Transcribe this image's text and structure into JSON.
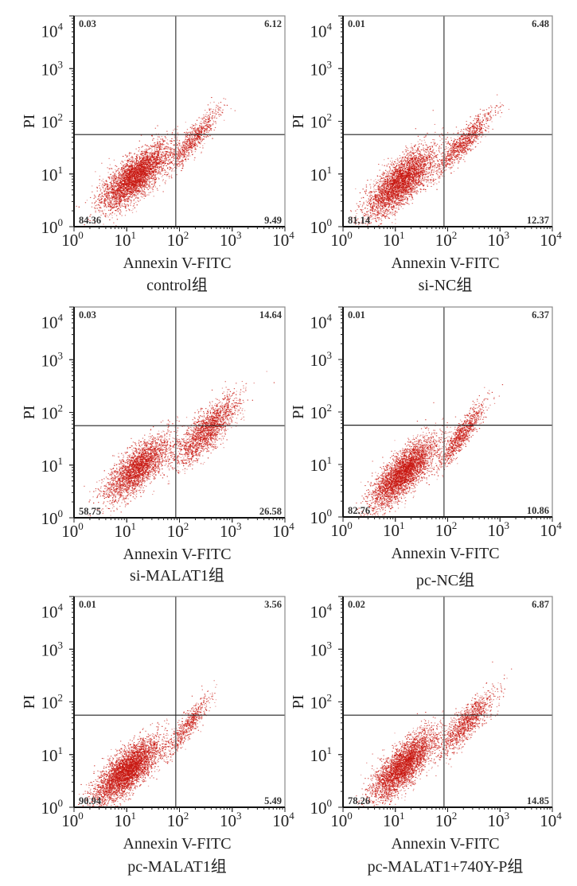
{
  "figure": {
    "dot_color": "#c8160f",
    "frame_color": "#333333",
    "gate_color": "#444444"
  },
  "chart_data": [
    {
      "type": "scatter",
      "title": "control组",
      "xlabel": "Annexin V-FITC",
      "ylabel": "PI",
      "xscale": "log",
      "yscale": "log",
      "xlim": [
        1,
        10000
      ],
      "ylim": [
        1,
        10000
      ],
      "xticks": [
        "10",
        "10",
        "10",
        "10",
        "10"
      ],
      "xtick_exponents": [
        "0",
        "1",
        "2",
        "3",
        "4"
      ],
      "yticks": [
        "10",
        "10",
        "10",
        "10",
        "10"
      ],
      "ytick_exponents": [
        "0",
        "1",
        "2",
        "3",
        "4"
      ],
      "gate": {
        "x": 85,
        "y": 56
      },
      "quadrants": {
        "upper_left": "0.03",
        "upper_right": "6.12",
        "lower_left": "84.36",
        "lower_right": "9.49"
      },
      "clusters": [
        {
          "name": "viable",
          "center_log": [
            1.15,
            0.95
          ],
          "spread_log": [
            0.32,
            0.3
          ],
          "corr": 0.75,
          "weight": 0.86
        },
        {
          "name": "apoptotic",
          "center_log": [
            2.25,
            1.65
          ],
          "spread_log": [
            0.25,
            0.3
          ],
          "corr": 0.9,
          "weight": 0.14
        }
      ]
    },
    {
      "type": "scatter",
      "title": "si-NC组",
      "xlabel": "Annexin V-FITC",
      "ylabel": "PI",
      "xscale": "log",
      "yscale": "log",
      "xlim": [
        1,
        10000
      ],
      "ylim": [
        1,
        10000
      ],
      "xticks": [
        "10",
        "10",
        "10",
        "10",
        "10"
      ],
      "xtick_exponents": [
        "0",
        "1",
        "2",
        "3",
        "4"
      ],
      "yticks": [
        "10",
        "10",
        "10",
        "10",
        "10"
      ],
      "ytick_exponents": [
        "0",
        "1",
        "2",
        "3",
        "4"
      ],
      "gate": {
        "x": 85,
        "y": 56
      },
      "quadrants": {
        "upper_left": "0.01",
        "upper_right": "6.48",
        "lower_left": "81.14",
        "lower_right": "12.37"
      },
      "clusters": [
        {
          "name": "viable",
          "center_log": [
            1.1,
            0.85
          ],
          "spread_log": [
            0.32,
            0.32
          ],
          "corr": 0.75,
          "weight": 0.82
        },
        {
          "name": "apoptotic",
          "center_log": [
            2.3,
            1.6
          ],
          "spread_log": [
            0.27,
            0.3
          ],
          "corr": 0.9,
          "weight": 0.18
        }
      ]
    },
    {
      "type": "scatter",
      "title": "si-MALAT1组",
      "xlabel": "Annexin V-FITC",
      "ylabel": "PI",
      "xscale": "log",
      "yscale": "log",
      "xlim": [
        1,
        10000
      ],
      "ylim": [
        1,
        10000
      ],
      "xticks": [
        "10",
        "10",
        "10",
        "10",
        "10"
      ],
      "xtick_exponents": [
        "0",
        "1",
        "2",
        "3",
        "4"
      ],
      "yticks": [
        "10",
        "10",
        "10",
        "10",
        "10"
      ],
      "ytick_exponents": [
        "0",
        "1",
        "2",
        "3",
        "4"
      ],
      "gate": {
        "x": 85,
        "y": 56
      },
      "quadrants": {
        "upper_left": "0.03",
        "upper_right": "14.64",
        "lower_left": "58.75",
        "lower_right": "26.58"
      },
      "clusters": [
        {
          "name": "viable",
          "center_log": [
            1.2,
            0.95
          ],
          "spread_log": [
            0.3,
            0.3
          ],
          "corr": 0.75,
          "weight": 0.6
        },
        {
          "name": "apoptotic",
          "center_log": [
            2.5,
            1.65
          ],
          "spread_log": [
            0.3,
            0.32
          ],
          "corr": 0.8,
          "weight": 0.4
        }
      ]
    },
    {
      "type": "scatter",
      "title": "pc-NC组",
      "xlabel": "Annexin V-FITC",
      "ylabel": "PI",
      "xscale": "log",
      "yscale": "log",
      "xlim": [
        1,
        10000
      ],
      "ylim": [
        1,
        10000
      ],
      "xticks": [
        "10",
        "10",
        "10",
        "10",
        "10"
      ],
      "xtick_exponents": [
        "0",
        "1",
        "2",
        "3",
        "4"
      ],
      "yticks": [
        "10",
        "10",
        "10",
        "10",
        "10"
      ],
      "ytick_exponents": [
        "0",
        "1",
        "2",
        "3",
        "4"
      ],
      "gate": {
        "x": 85,
        "y": 56
      },
      "quadrants": {
        "upper_left": "0.01",
        "upper_right": "6.37",
        "lower_left": "82.76",
        "lower_right": "10.86"
      },
      "clusters": [
        {
          "name": "viable",
          "center_log": [
            1.15,
            0.85
          ],
          "spread_log": [
            0.3,
            0.32
          ],
          "corr": 0.78,
          "weight": 0.83
        },
        {
          "name": "apoptotic",
          "center_log": [
            2.25,
            1.55
          ],
          "spread_log": [
            0.22,
            0.3
          ],
          "corr": 0.9,
          "weight": 0.17
        }
      ]
    },
    {
      "type": "scatter",
      "title": "pc-MALAT1组",
      "xlabel": "Annexin V-FITC",
      "ylabel": "PI",
      "xscale": "log",
      "yscale": "log",
      "xlim": [
        1,
        10000
      ],
      "ylim": [
        1,
        10000
      ],
      "xticks": [
        "10",
        "10",
        "10",
        "10",
        "10"
      ],
      "xtick_exponents": [
        "0",
        "1",
        "2",
        "3",
        "4"
      ],
      "yticks": [
        "10",
        "10",
        "10",
        "10",
        "10"
      ],
      "ytick_exponents": [
        "0",
        "1",
        "2",
        "3",
        "4"
      ],
      "gate": {
        "x": 85,
        "y": 56
      },
      "quadrants": {
        "upper_left": "0.01",
        "upper_right": "3.56",
        "lower_left": "90.94",
        "lower_right": "5.49"
      },
      "clusters": [
        {
          "name": "viable",
          "center_log": [
            1.0,
            0.7
          ],
          "spread_log": [
            0.3,
            0.3
          ],
          "corr": 0.75,
          "weight": 0.91
        },
        {
          "name": "apoptotic",
          "center_log": [
            2.15,
            1.55
          ],
          "spread_log": [
            0.22,
            0.3
          ],
          "corr": 0.9,
          "weight": 0.09
        }
      ]
    },
    {
      "type": "scatter",
      "title": "pc-MALAT1+740Y-P组",
      "xlabel": "Annexin V-FITC",
      "ylabel": "PI",
      "xscale": "log",
      "yscale": "log",
      "xlim": [
        1,
        10000
      ],
      "ylim": [
        1,
        10000
      ],
      "xticks": [
        "10",
        "10",
        "10",
        "10",
        "10"
      ],
      "xtick_exponents": [
        "0",
        "1",
        "2",
        "3",
        "4"
      ],
      "yticks": [
        "10",
        "10",
        "10",
        "10",
        "10"
      ],
      "ytick_exponents": [
        "0",
        "1",
        "2",
        "3",
        "4"
      ],
      "gate": {
        "x": 85,
        "y": 56
      },
      "quadrants": {
        "upper_left": "0.02",
        "upper_right": "6.87",
        "lower_left": "78.26",
        "lower_right": "14.85"
      },
      "clusters": [
        {
          "name": "viable",
          "center_log": [
            1.15,
            0.8
          ],
          "spread_log": [
            0.3,
            0.32
          ],
          "corr": 0.78,
          "weight": 0.78
        },
        {
          "name": "apoptotic",
          "center_log": [
            2.35,
            1.6
          ],
          "spread_log": [
            0.26,
            0.3
          ],
          "corr": 0.85,
          "weight": 0.22
        }
      ]
    }
  ]
}
